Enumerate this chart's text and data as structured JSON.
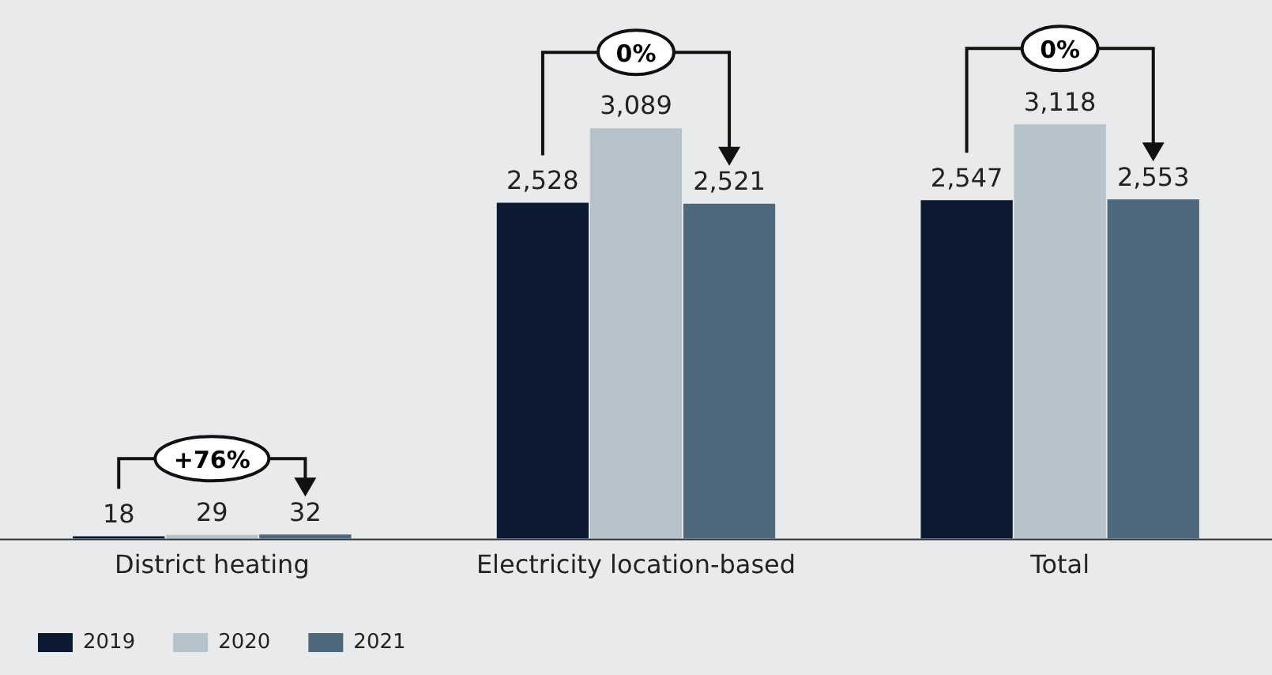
{
  "chart_data": {
    "type": "bar",
    "categories": [
      "District heating",
      "Electricity location-based",
      "Total"
    ],
    "series": [
      {
        "name": "2019",
        "color": "#0b1a32",
        "values": [
          18,
          2528,
          2547
        ],
        "value_labels": [
          "18",
          "2,528",
          "2,547"
        ]
      },
      {
        "name": "2020",
        "color": "#b6c3ca",
        "values": [
          29,
          3089,
          3118
        ],
        "value_labels": [
          "29",
          "3,089",
          "3,118"
        ]
      },
      {
        "name": "2021",
        "color": "#4f687c",
        "values": [
          32,
          2521,
          2553
        ],
        "value_labels": [
          "32",
          "2,521",
          "2,553"
        ]
      }
    ],
    "legend": "bottom left",
    "annotations": [
      "+76%",
      "0%",
      "0%"
    ]
  }
}
